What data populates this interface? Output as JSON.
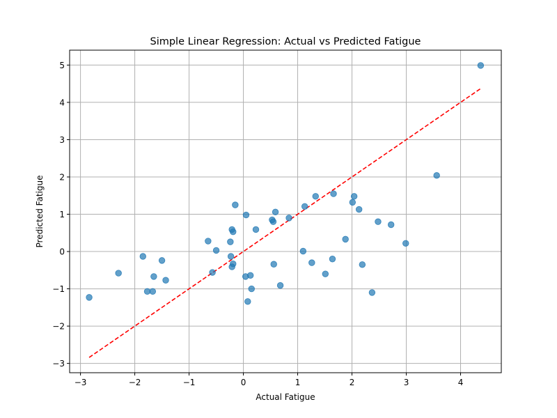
{
  "chart_data": {
    "type": "scatter",
    "title": "Simple Linear Regression: Actual vs Predicted Fatigue",
    "xlabel": "Actual Fatigue",
    "ylabel": "Predicted Fatigue",
    "xlim": [
      -3.2,
      4.75
    ],
    "ylim": [
      -3.25,
      5.4
    ],
    "xticks": [
      -3,
      -2,
      -1,
      0,
      1,
      2,
      3,
      4
    ],
    "yticks": [
      -3,
      -2,
      -1,
      0,
      1,
      2,
      3,
      4,
      5
    ],
    "xtick_labels": [
      "−3",
      "−2",
      "−1",
      "0",
      "1",
      "2",
      "3",
      "4"
    ],
    "ytick_labels": [
      "−3",
      "−2",
      "−1",
      "0",
      "1",
      "2",
      "3",
      "4",
      "5"
    ],
    "grid": true,
    "point_color": "#1f77b4",
    "line_color": "#ff0000",
    "reference_line": {
      "style": "dashed",
      "from": [
        -2.84,
        -2.84
      ],
      "to": [
        4.36,
        4.36
      ]
    },
    "points": [
      {
        "x": -2.84,
        "y": -1.23
      },
      {
        "x": -2.3,
        "y": -0.58
      },
      {
        "x": -1.85,
        "y": -0.13
      },
      {
        "x": -1.77,
        "y": -1.07
      },
      {
        "x": -1.67,
        "y": -1.07
      },
      {
        "x": -1.65,
        "y": -0.67
      },
      {
        "x": -1.5,
        "y": -0.24
      },
      {
        "x": -1.43,
        "y": -0.77
      },
      {
        "x": -0.65,
        "y": 0.28
      },
      {
        "x": -0.57,
        "y": -0.56
      },
      {
        "x": -0.5,
        "y": 0.03
      },
      {
        "x": -0.24,
        "y": 0.26
      },
      {
        "x": -0.23,
        "y": -0.13
      },
      {
        "x": -0.21,
        "y": -0.41
      },
      {
        "x": -0.21,
        "y": 0.59
      },
      {
        "x": -0.19,
        "y": -0.33
      },
      {
        "x": -0.19,
        "y": 0.53
      },
      {
        "x": -0.15,
        "y": 1.25
      },
      {
        "x": 0.04,
        "y": -0.67
      },
      {
        "x": 0.05,
        "y": 0.98
      },
      {
        "x": 0.08,
        "y": -1.34
      },
      {
        "x": 0.13,
        "y": -0.64
      },
      {
        "x": 0.15,
        "y": -1.0
      },
      {
        "x": 0.23,
        "y": 0.59
      },
      {
        "x": 0.53,
        "y": 0.85
      },
      {
        "x": 0.55,
        "y": 0.8
      },
      {
        "x": 0.56,
        "y": -0.34
      },
      {
        "x": 0.59,
        "y": 1.06
      },
      {
        "x": 0.68,
        "y": -0.91
      },
      {
        "x": 0.84,
        "y": 0.9
      },
      {
        "x": 1.1,
        "y": 0.01
      },
      {
        "x": 1.13,
        "y": 1.21
      },
      {
        "x": 1.26,
        "y": -0.3
      },
      {
        "x": 1.33,
        "y": 1.48
      },
      {
        "x": 1.51,
        "y": -0.6
      },
      {
        "x": 1.64,
        "y": -0.2
      },
      {
        "x": 1.66,
        "y": 1.55
      },
      {
        "x": 1.88,
        "y": 0.33
      },
      {
        "x": 2.01,
        "y": 1.32
      },
      {
        "x": 2.04,
        "y": 1.48
      },
      {
        "x": 2.13,
        "y": 1.13
      },
      {
        "x": 2.19,
        "y": -0.35
      },
      {
        "x": 2.37,
        "y": -1.1
      },
      {
        "x": 2.48,
        "y": 0.8
      },
      {
        "x": 2.72,
        "y": 0.72
      },
      {
        "x": 2.99,
        "y": 0.22
      },
      {
        "x": 3.56,
        "y": 2.04
      },
      {
        "x": 4.37,
        "y": 4.99
      }
    ]
  }
}
